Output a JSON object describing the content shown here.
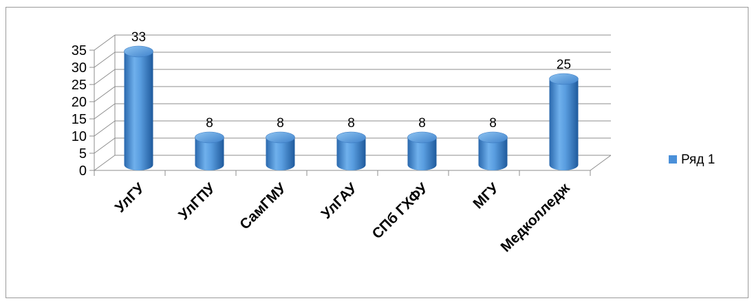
{
  "chart_data": {
    "type": "bar",
    "style": "3d-cylinder",
    "categories": [
      "УлГУ",
      "УлГПУ",
      "СамГМУ",
      "УлГАУ",
      "СПб ГХФУ",
      "МГУ",
      "Медколледж"
    ],
    "series": [
      {
        "name": "Ряд 1",
        "values": [
          33,
          8,
          8,
          8,
          8,
          8,
          25
        ],
        "color": "#4a90d9"
      }
    ],
    "data_labels": [
      "33",
      "8",
      "8",
      "8",
      "8",
      "8",
      "25"
    ],
    "yticks": [
      "0",
      "5",
      "10",
      "15",
      "20",
      "25",
      "30",
      "35"
    ],
    "ylim": [
      0,
      35
    ],
    "grid": true,
    "legend_position": "right"
  }
}
